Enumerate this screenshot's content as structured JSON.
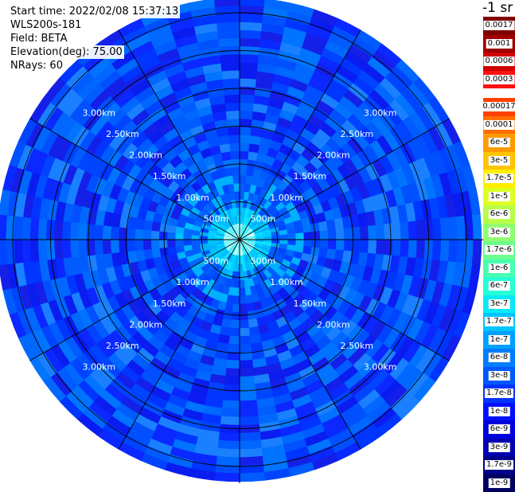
{
  "header": {
    "start_time": "Start time: 2022/02/08 15:37:13",
    "instrument": "WLS200s-181",
    "field": "Field: BETA",
    "elevation": "Elevation(deg): 75.00",
    "nrays": "NRays: 60"
  },
  "colorbar": {
    "unit_title": "-1 sr",
    "labels": [
      "0.0017",
      "0.001",
      "0.0006",
      "0.0003",
      "0.00017",
      "0.0001",
      "6e-5",
      "3e-5",
      "1.7e-5",
      "1e-5",
      "6e-6",
      "3e-6",
      "1.7e-6",
      "1e-6",
      "6e-7",
      "3e-7",
      "1.7e-7",
      "1e-7",
      "6e-8",
      "3e-8",
      "1.7e-8",
      "1e-8",
      "6e-9",
      "3e-9",
      "1.7e-9",
      "1e-9"
    ],
    "colors": [
      "#800000",
      "#a00000",
      "#d00000",
      "#ff1010",
      "#ff4000",
      "#ff7000",
      "#ff9a00",
      "#ffc400",
      "#ffee00",
      "#ddff22",
      "#b8ff48",
      "#90ff70",
      "#6cff8c",
      "#48ffb0",
      "#26ffd4",
      "#06eaf8",
      "#00c4ff",
      "#00a0ff",
      "#007cff",
      "#0058ff",
      "#0034ff",
      "#0010ff",
      "#0000dd",
      "#0000b0",
      "#000088",
      "#000060"
    ]
  },
  "chart_data": {
    "type": "heatmap",
    "projection": "polar PPI",
    "range_rings_km": [
      "500m",
      "1.00km",
      "1.50km",
      "2.00km",
      "2.50km",
      "3.00km"
    ],
    "ring_values_m": [
      500,
      1000,
      1500,
      2000,
      2500,
      3000
    ],
    "max_range_m": 3200,
    "azimuth_spokes_deg": [
      0,
      30,
      60,
      90,
      120,
      150,
      180,
      210,
      240,
      270,
      300,
      330
    ],
    "n_rays": 60,
    "field": "BETA",
    "value_range": [
      1e-09,
      0.0017
    ],
    "typical_values": {
      "near_center": 1e-06,
      "inner": 1e-07,
      "outer": 1.7e-08
    }
  }
}
